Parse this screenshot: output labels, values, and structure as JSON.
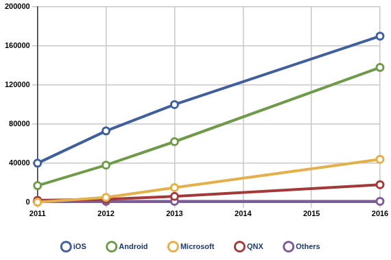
{
  "chart_data": {
    "type": "line",
    "x": [
      2011,
      2012,
      2013,
      2014,
      2015,
      2016
    ],
    "xlim": [
      2011,
      2016
    ],
    "xticks": [
      2011,
      2012,
      2013,
      2014,
      2015,
      2016
    ],
    "ylim": [
      0,
      200000
    ],
    "yticks": [
      0,
      40000,
      80000,
      120000,
      160000,
      200000
    ],
    "grid": true,
    "legend": "bottom",
    "marker": "circle",
    "series": [
      {
        "name": "iOS",
        "color": "#41609b",
        "values": [
          40000,
          73000,
          100000,
          null,
          null,
          170000
        ]
      },
      {
        "name": "Android",
        "color": "#6f9a4a",
        "values": [
          17000,
          38000,
          62000,
          null,
          null,
          138000
        ]
      },
      {
        "name": "Microsoft",
        "color": "#e3b04b",
        "values": [
          0,
          5000,
          15000,
          null,
          null,
          44000
        ]
      },
      {
        "name": "QNX",
        "color": "#a33a3a",
        "values": [
          2000,
          3000,
          6000,
          null,
          null,
          18000
        ]
      },
      {
        "name": "Others",
        "color": "#7b5a9a",
        "values": [
          500,
          1000,
          1000,
          null,
          null,
          1000
        ]
      }
    ]
  }
}
